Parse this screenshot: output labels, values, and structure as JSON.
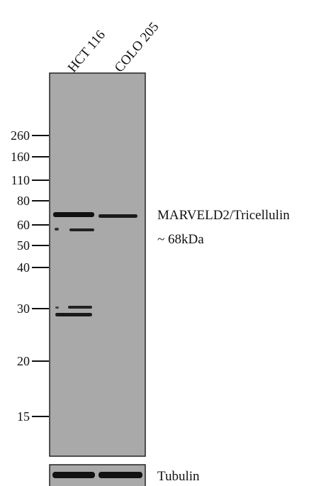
{
  "lanes": [
    "HCT 116",
    "COLO 205"
  ],
  "markers": [
    "260",
    "160",
    "110",
    "80",
    "60",
    "50",
    "40",
    "30",
    "20",
    "15"
  ],
  "band_label": {
    "name": "MARVELD2/Tricellulin",
    "size": "~ 68kDa"
  },
  "loading_control": "Tubulin"
}
